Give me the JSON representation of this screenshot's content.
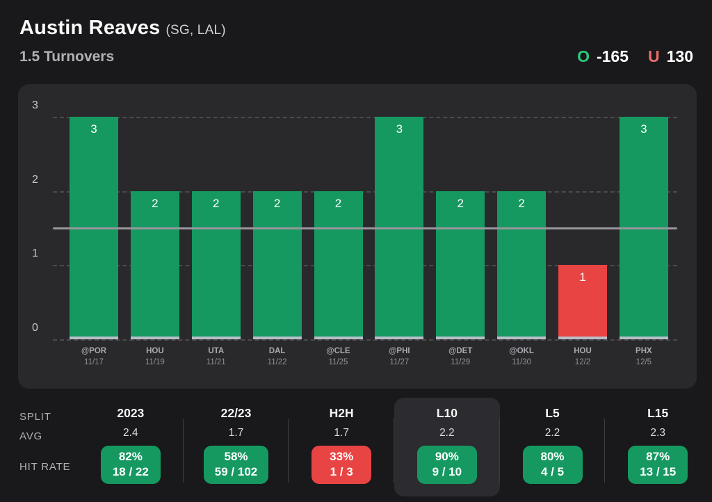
{
  "header": {
    "player_name": "Austin Reaves",
    "player_meta": "(SG, LAL)",
    "prop_line": "1.5 Turnovers",
    "over": {
      "symbol": "O",
      "odds": "-165"
    },
    "under": {
      "symbol": "U",
      "odds": "130"
    }
  },
  "colors": {
    "over_green": "#159961",
    "under_red": "#e84443",
    "over_icon_green": "#2ec97b",
    "under_icon_red": "#ea6f6b",
    "panel_bg": "#29292c",
    "page_bg": "#19191b",
    "threshold_gray": "#97979b"
  },
  "chart_data": {
    "type": "bar",
    "title": "Austin Reaves turnovers by game vs 1.5 line",
    "ylabel": "",
    "xlabel": "",
    "ylim": [
      0,
      3
    ],
    "yticks": [
      0,
      1,
      2,
      3
    ],
    "threshold": 1.5,
    "grid": "dashed horizontal",
    "games": [
      {
        "opponent": "@POR",
        "date": "11/17",
        "value": 3,
        "result": "over"
      },
      {
        "opponent": "HOU",
        "date": "11/19",
        "value": 2,
        "result": "over"
      },
      {
        "opponent": "UTA",
        "date": "11/21",
        "value": 2,
        "result": "over"
      },
      {
        "opponent": "DAL",
        "date": "11/22",
        "value": 2,
        "result": "over"
      },
      {
        "opponent": "@CLE",
        "date": "11/25",
        "value": 2,
        "result": "over"
      },
      {
        "opponent": "@PHI",
        "date": "11/27",
        "value": 3,
        "result": "over"
      },
      {
        "opponent": "@DET",
        "date": "11/29",
        "value": 2,
        "result": "over"
      },
      {
        "opponent": "@OKL",
        "date": "11/30",
        "value": 2,
        "result": "over"
      },
      {
        "opponent": "HOU",
        "date": "12/2",
        "value": 1,
        "result": "under"
      },
      {
        "opponent": "PHX",
        "date": "12/5",
        "value": 3,
        "result": "over"
      }
    ]
  },
  "splits": {
    "row_labels": [
      "SPLIT",
      "AVG",
      "HIT RATE"
    ],
    "columns": [
      {
        "label": "2023",
        "avg": "2.4",
        "hit_pct": "82%",
        "hit_frac": "18 / 22",
        "status": "over",
        "selected": false
      },
      {
        "label": "22/23",
        "avg": "1.7",
        "hit_pct": "58%",
        "hit_frac": "59 / 102",
        "status": "over",
        "selected": false
      },
      {
        "label": "H2H",
        "avg": "1.7",
        "hit_pct": "33%",
        "hit_frac": "1 / 3",
        "status": "under",
        "selected": false
      },
      {
        "label": "L10",
        "avg": "2.2",
        "hit_pct": "90%",
        "hit_frac": "9 / 10",
        "status": "over",
        "selected": true
      },
      {
        "label": "L5",
        "avg": "2.2",
        "hit_pct": "80%",
        "hit_frac": "4 / 5",
        "status": "over",
        "selected": false
      },
      {
        "label": "L15",
        "avg": "2.3",
        "hit_pct": "87%",
        "hit_frac": "13 / 15",
        "status": "over",
        "selected": false
      }
    ]
  }
}
